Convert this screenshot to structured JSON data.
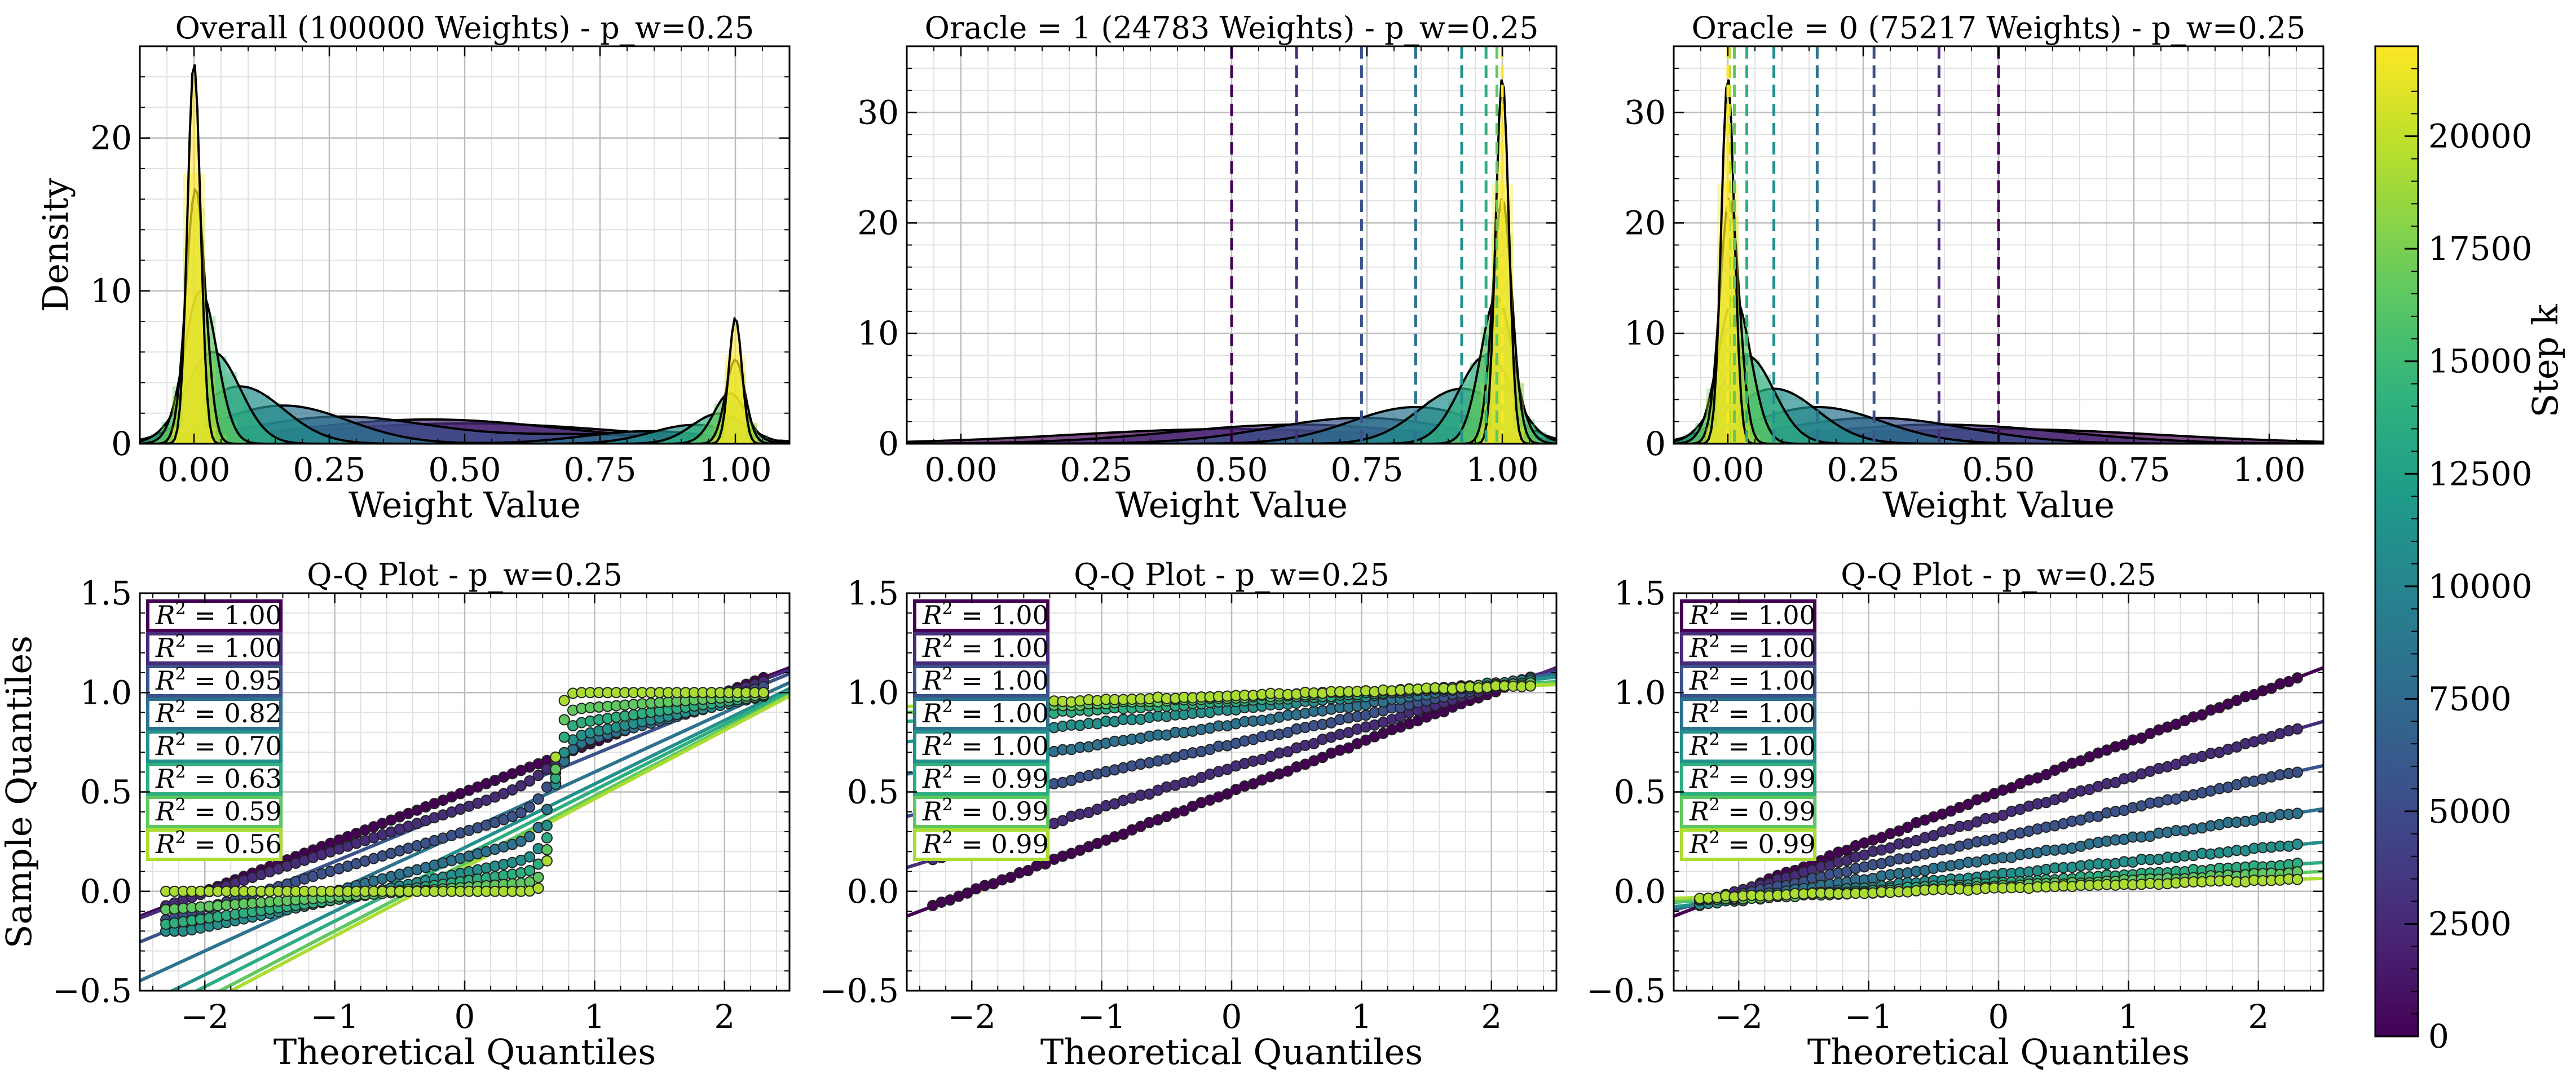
{
  "colorbar": {
    "label": "Step k",
    "ticks": [
      0,
      2500,
      5000,
      7500,
      10000,
      12500,
      15000,
      17500,
      20000
    ],
    "range": [
      0,
      22000
    ],
    "colormap": "viridis"
  },
  "chart_data": [
    {
      "type": "area",
      "title": "Overall (100000 Weights) - p_w=0.25",
      "xlabel": "Weight Value",
      "ylabel": "Density",
      "xlim": [
        -0.1,
        1.1
      ],
      "ylim": [
        0,
        26
      ],
      "xticks": [
        "0.00",
        "0.25",
        "0.50",
        "0.75",
        "1.00"
      ],
      "yticks": [
        "0",
        "10",
        "20"
      ],
      "grid": true,
      "steps": [
        0,
        2750,
        5500,
        8250,
        11000,
        13750,
        16500,
        19250,
        22000
      ],
      "mix_one": 0.24783,
      "oracle1_means": [
        0.5,
        0.62,
        0.74,
        0.84,
        0.925,
        0.97,
        0.99,
        1.0,
        1.0
      ],
      "oracle1_sds": [
        0.3,
        0.23,
        0.17,
        0.12,
        0.08,
        0.05,
        0.03,
        0.018,
        0.012
      ],
      "oracle0_means": [
        0.5,
        0.39,
        0.27,
        0.165,
        0.085,
        0.035,
        0.012,
        0.003,
        0.0
      ],
      "oracle0_sds": [
        0.3,
        0.23,
        0.17,
        0.12,
        0.08,
        0.05,
        0.03,
        0.018,
        0.012
      ],
      "vlines": []
    },
    {
      "type": "area",
      "title": "Oracle = 1 (24783 Weights) - p_w=0.25",
      "xlabel": "Weight Value",
      "ylabel": "",
      "xlim": [
        -0.1,
        1.1
      ],
      "ylim": [
        0,
        36
      ],
      "xticks": [
        "0.00",
        "0.25",
        "0.50",
        "0.75",
        "1.00"
      ],
      "yticks": [
        "0",
        "10",
        "20",
        "30"
      ],
      "grid": true,
      "steps": [
        0,
        2750,
        5500,
        8250,
        11000,
        13750,
        16500,
        19250,
        22000
      ],
      "means": [
        0.5,
        0.62,
        0.74,
        0.84,
        0.925,
        0.97,
        0.99,
        1.0,
        1.0
      ],
      "sds": [
        0.3,
        0.23,
        0.17,
        0.12,
        0.08,
        0.05,
        0.03,
        0.018,
        0.012
      ],
      "vlines": [
        0.5,
        0.62,
        0.74,
        0.84,
        0.925,
        0.97,
        0.99,
        1.0,
        1.0
      ]
    },
    {
      "type": "area",
      "title": "Oracle = 0 (75217 Weights) - p_w=0.25",
      "xlabel": "Weight Value",
      "ylabel": "",
      "xlim": [
        -0.1,
        1.1
      ],
      "ylim": [
        0,
        36
      ],
      "xticks": [
        "0.00",
        "0.25",
        "0.50",
        "0.75",
        "1.00"
      ],
      "yticks": [
        "0",
        "10",
        "20",
        "30"
      ],
      "grid": true,
      "steps": [
        0,
        2750,
        5500,
        8250,
        11000,
        13750,
        16500,
        19250,
        22000
      ],
      "means": [
        0.5,
        0.39,
        0.27,
        0.165,
        0.085,
        0.035,
        0.012,
        0.003,
        0.0
      ],
      "sds": [
        0.3,
        0.23,
        0.17,
        0.12,
        0.08,
        0.05,
        0.03,
        0.018,
        0.012
      ],
      "vlines": [
        0.5,
        0.39,
        0.27,
        0.165,
        0.085,
        0.035,
        0.012,
        0.003,
        0.0
      ]
    },
    {
      "type": "scatter",
      "title": "Q-Q Plot - p_w=0.25",
      "xlabel": "Theoretical Quantiles",
      "ylabel": "Sample Quantiles",
      "xlim": [
        -2.5,
        2.5
      ],
      "ylim": [
        -0.5,
        1.5
      ],
      "xticks": [
        "−2",
        "−1",
        "0",
        "1",
        "2"
      ],
      "yticks": [
        "−0.5",
        "0.0",
        "0.5",
        "1.0",
        "1.5"
      ],
      "grid": true,
      "steps": [
        0,
        2750,
        5500,
        8250,
        11000,
        13750,
        16500,
        19250
      ],
      "r2_labels": [
        "0.95",
        "1.00",
        "0.82",
        "0.70",
        "0.63",
        "0.59",
        "0.56",
        "1.00"
      ],
      "r2_order": [
        "1.00",
        "1.00",
        "0.95",
        "0.82",
        "0.70",
        "0.63",
        "0.59",
        "0.56"
      ],
      "lines": [
        {
          "intercept": 0.5,
          "slope": 0.25
        },
        {
          "intercept": 0.49,
          "slope": 0.25
        },
        {
          "intercept": 0.42,
          "slope": 0.27
        },
        {
          "intercept": 0.3,
          "slope": 0.3
        },
        {
          "intercept": 0.22,
          "slope": 0.32
        },
        {
          "intercept": 0.18,
          "slope": 0.33
        },
        {
          "intercept": 0.14,
          "slope": 0.34
        },
        {
          "intercept": 0.12,
          "slope": 0.345
        }
      ]
    },
    {
      "type": "scatter",
      "title": "Q-Q Plot - p_w=0.25",
      "xlabel": "Theoretical Quantiles",
      "ylabel": "",
      "xlim": [
        -2.5,
        2.5
      ],
      "ylim": [
        -0.5,
        1.5
      ],
      "xticks": [
        "−2",
        "−1",
        "0",
        "1",
        "2"
      ],
      "yticks": [
        "−0.5",
        "0.0",
        "0.5",
        "1.0",
        "1.5"
      ],
      "grid": true,
      "steps": [
        0,
        2750,
        5500,
        8250,
        11000,
        13750,
        16500,
        19250
      ],
      "r2_labels": [
        "1.00",
        "1.00",
        "1.00",
        "1.00",
        "1.00",
        "0.99",
        "0.99",
        "0.99"
      ],
      "lines": [
        {
          "intercept": 0.5,
          "slope": 0.25
        },
        {
          "intercept": 0.62,
          "slope": 0.2
        },
        {
          "intercept": 0.74,
          "slope": 0.145
        },
        {
          "intercept": 0.84,
          "slope": 0.1
        },
        {
          "intercept": 0.915,
          "slope": 0.065
        },
        {
          "intercept": 0.955,
          "slope": 0.04
        },
        {
          "intercept": 0.975,
          "slope": 0.03
        },
        {
          "intercept": 0.985,
          "slope": 0.022
        }
      ]
    },
    {
      "type": "scatter",
      "title": "Q-Q Plot - p_w=0.25",
      "xlabel": "Theoretical Quantiles",
      "ylabel": "",
      "xlim": [
        -2.5,
        2.5
      ],
      "ylim": [
        -0.5,
        1.5
      ],
      "xticks": [
        "−2",
        "−1",
        "0",
        "1",
        "2"
      ],
      "yticks": [
        "−0.5",
        "0.0",
        "0.5",
        "1.0",
        "1.5"
      ],
      "grid": true,
      "steps": [
        0,
        2750,
        5500,
        8250,
        11000,
        13750,
        16500,
        19250
      ],
      "r2_labels": [
        "1.00",
        "1.00",
        "1.00",
        "1.00",
        "1.00",
        "0.99",
        "0.99",
        "0.99"
      ],
      "lines": [
        {
          "intercept": 0.5,
          "slope": 0.25
        },
        {
          "intercept": 0.38,
          "slope": 0.19
        },
        {
          "intercept": 0.27,
          "slope": 0.145
        },
        {
          "intercept": 0.165,
          "slope": 0.1
        },
        {
          "intercept": 0.085,
          "slope": 0.065
        },
        {
          "intercept": 0.045,
          "slope": 0.04
        },
        {
          "intercept": 0.025,
          "slope": 0.03
        },
        {
          "intercept": 0.015,
          "slope": 0.02
        }
      ]
    }
  ]
}
